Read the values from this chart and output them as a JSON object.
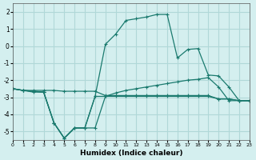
{
  "xlabel": "Humidex (Indice chaleur)",
  "ylabel": "",
  "xlim": [
    0,
    23
  ],
  "ylim": [
    -5.5,
    2.5
  ],
  "xticks": [
    0,
    1,
    2,
    3,
    4,
    5,
    6,
    7,
    8,
    9,
    10,
    11,
    12,
    13,
    14,
    15,
    16,
    17,
    18,
    19,
    20,
    21,
    22,
    23
  ],
  "yticks": [
    -5,
    -4,
    -3,
    -2,
    -1,
    0,
    1,
    2
  ],
  "background_color": "#d4efef",
  "grid_color": "#b0d8d8",
  "line_color": "#1a7a6e",
  "lines": [
    {
      "x": [
        0,
        1,
        2,
        3,
        4,
        5,
        6,
        7,
        8,
        9,
        10,
        11,
        12,
        13,
        14,
        15,
        16,
        17,
        18,
        19,
        20,
        21,
        22,
        23
      ],
      "y": [
        -2.5,
        -2.6,
        -2.6,
        -2.6,
        -2.6,
        -2.65,
        -2.65,
        -2.65,
        -2.65,
        -2.9,
        -2.9,
        -2.9,
        -2.9,
        -2.9,
        -2.9,
        -2.9,
        -2.9,
        -2.9,
        -2.9,
        -2.9,
        -3.1,
        -3.1,
        -3.2,
        -3.2
      ]
    },
    {
      "x": [
        0,
        1,
        2,
        3,
        4,
        5,
        6,
        7,
        8,
        9,
        10,
        11,
        12,
        13,
        14,
        15,
        16,
        17,
        18,
        19,
        20,
        21,
        22,
        23
      ],
      "y": [
        -2.5,
        -2.6,
        -2.65,
        -2.7,
        -4.5,
        -5.4,
        -4.8,
        -4.8,
        -4.8,
        -2.95,
        -2.95,
        -2.95,
        -2.95,
        -2.95,
        -2.95,
        -2.95,
        -2.95,
        -2.95,
        -2.95,
        -2.95,
        -3.1,
        -3.1,
        -3.2,
        -3.2
      ]
    },
    {
      "x": [
        0,
        1,
        2,
        3,
        4,
        5,
        6,
        7,
        8,
        9,
        10,
        11,
        12,
        13,
        14,
        15,
        16,
        17,
        18,
        19,
        20,
        21,
        22,
        23
      ],
      "y": [
        -2.5,
        -2.6,
        -2.7,
        -2.7,
        -4.5,
        -5.4,
        -4.8,
        -4.8,
        -2.95,
        0.1,
        0.7,
        1.5,
        1.6,
        1.7,
        1.85,
        1.85,
        -0.7,
        -0.2,
        -0.15,
        -1.7,
        -1.75,
        -2.4,
        -3.2,
        -3.2
      ]
    },
    {
      "x": [
        0,
        1,
        2,
        3,
        4,
        5,
        6,
        7,
        8,
        9,
        10,
        11,
        12,
        13,
        14,
        15,
        16,
        17,
        18,
        19,
        20,
        21,
        22,
        23
      ],
      "y": [
        -2.5,
        -2.6,
        -2.65,
        -2.7,
        -4.5,
        -5.4,
        -4.8,
        -4.8,
        -2.95,
        -2.95,
        -2.75,
        -2.6,
        -2.5,
        -2.4,
        -2.3,
        -2.2,
        -2.1,
        -2.0,
        -1.95,
        -1.85,
        -2.4,
        -3.2,
        -3.2,
        -3.2
      ]
    }
  ]
}
